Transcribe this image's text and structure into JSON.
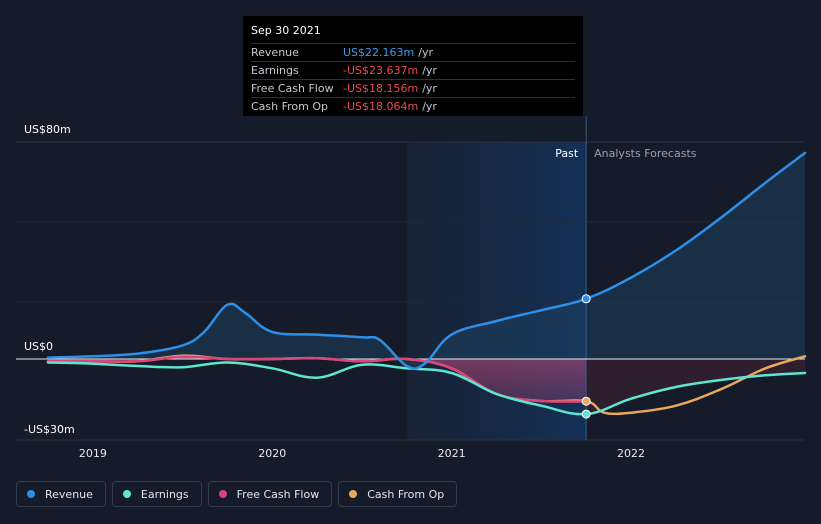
{
  "tooltip": {
    "date": "Sep 30 2021",
    "rows": [
      {
        "label": "Revenue",
        "value": "US$22.163m",
        "unit": "/yr",
        "color": "#3a9cf0"
      },
      {
        "label": "Earnings",
        "value": "-US$23.637m",
        "unit": "/yr",
        "color": "#ef4a4a"
      },
      {
        "label": "Free Cash Flow",
        "value": "-US$18.156m",
        "unit": "/yr",
        "color": "#ef4a4a"
      },
      {
        "label": "Cash From Op",
        "value": "-US$18.064m",
        "unit": "/yr",
        "color": "#ef4a4a"
      }
    ]
  },
  "legend": [
    {
      "label": "Revenue",
      "color": "#2e8fe8"
    },
    {
      "label": "Earnings",
      "color": "#5ee6cf"
    },
    {
      "label": "Free Cash Flow",
      "color": "#d9457f"
    },
    {
      "label": "Cash From Op",
      "color": "#e8a85e"
    }
  ],
  "chart_data": {
    "type": "line",
    "title": "",
    "ylim": [
      -30,
      80
    ],
    "y_ticks": [
      {
        "value": 80,
        "label": "US$80m"
      },
      {
        "value": 0,
        "label": "US$0"
      },
      {
        "value": -30,
        "label": "-US$30m"
      }
    ],
    "xlim": [
      2018.75,
      2022.97
    ],
    "x_ticks": [
      {
        "value": 2019,
        "label": "2019"
      },
      {
        "value": 2020,
        "label": "2020"
      },
      {
        "value": 2021,
        "label": "2021"
      },
      {
        "value": 2022,
        "label": "2022"
      }
    ],
    "past_label": "Past",
    "forecast_label": "Analysts Forecasts",
    "highlight_start": 2020.75,
    "divider_x": 2021.75,
    "series": [
      {
        "name": "Revenue",
        "color": "#2e8fe8",
        "points": [
          [
            2018.75,
            0.5
          ],
          [
            2019.0,
            1
          ],
          [
            2019.25,
            2
          ],
          [
            2019.5,
            5
          ],
          [
            2019.62,
            10
          ],
          [
            2019.75,
            20
          ],
          [
            2019.85,
            17
          ],
          [
            2020.0,
            10
          ],
          [
            2020.25,
            9
          ],
          [
            2020.5,
            8
          ],
          [
            2020.6,
            7
          ],
          [
            2020.75,
            -3
          ],
          [
            2020.85,
            -2
          ],
          [
            2021.0,
            9
          ],
          [
            2021.25,
            14
          ],
          [
            2021.5,
            18
          ],
          [
            2021.75,
            22.2
          ],
          [
            2022.0,
            30
          ],
          [
            2022.25,
            40
          ],
          [
            2022.5,
            52
          ],
          [
            2022.75,
            65
          ],
          [
            2022.97,
            76
          ]
        ]
      },
      {
        "name": "Earnings",
        "color": "#5ee6cf",
        "points": [
          [
            2018.75,
            -1.5
          ],
          [
            2019.0,
            -2
          ],
          [
            2019.25,
            -3
          ],
          [
            2019.5,
            -3.5
          ],
          [
            2019.75,
            -1.5
          ],
          [
            2020.0,
            -4
          ],
          [
            2020.25,
            -8
          ],
          [
            2020.5,
            -2.5
          ],
          [
            2020.75,
            -4
          ],
          [
            2021.0,
            -6
          ],
          [
            2021.25,
            -15
          ],
          [
            2021.5,
            -20
          ],
          [
            2021.75,
            -23.6
          ],
          [
            2022.0,
            -17
          ],
          [
            2022.25,
            -12
          ],
          [
            2022.5,
            -9
          ],
          [
            2022.75,
            -7
          ],
          [
            2022.97,
            -6
          ]
        ]
      },
      {
        "name": "Free Cash Flow",
        "color": "#d9457f",
        "points": [
          [
            2018.75,
            -1
          ],
          [
            2019.0,
            -1
          ],
          [
            2019.25,
            -1
          ],
          [
            2019.5,
            0.8
          ],
          [
            2019.75,
            0
          ],
          [
            2020.0,
            0
          ],
          [
            2020.25,
            0.3
          ],
          [
            2020.5,
            -1
          ],
          [
            2020.75,
            0
          ],
          [
            2021.0,
            -4
          ],
          [
            2021.25,
            -15
          ],
          [
            2021.5,
            -18
          ],
          [
            2021.75,
            -18.2
          ]
        ]
      },
      {
        "name": "Cash From Op",
        "color": "#e8a85e",
        "points": [
          [
            2018.75,
            -1
          ],
          [
            2019.0,
            -1
          ],
          [
            2019.25,
            -1
          ],
          [
            2019.5,
            1.2
          ],
          [
            2019.75,
            0
          ],
          [
            2020.0,
            0
          ],
          [
            2020.25,
            0.3
          ],
          [
            2020.5,
            -1
          ],
          [
            2020.75,
            0
          ],
          [
            2021.0,
            -4
          ],
          [
            2021.25,
            -15
          ],
          [
            2021.5,
            -18
          ],
          [
            2021.75,
            -18.1
          ],
          [
            2021.85,
            -23
          ],
          [
            2022.0,
            -23
          ],
          [
            2022.25,
            -20
          ],
          [
            2022.5,
            -13
          ],
          [
            2022.75,
            -4
          ],
          [
            2022.97,
            1
          ]
        ]
      }
    ]
  }
}
